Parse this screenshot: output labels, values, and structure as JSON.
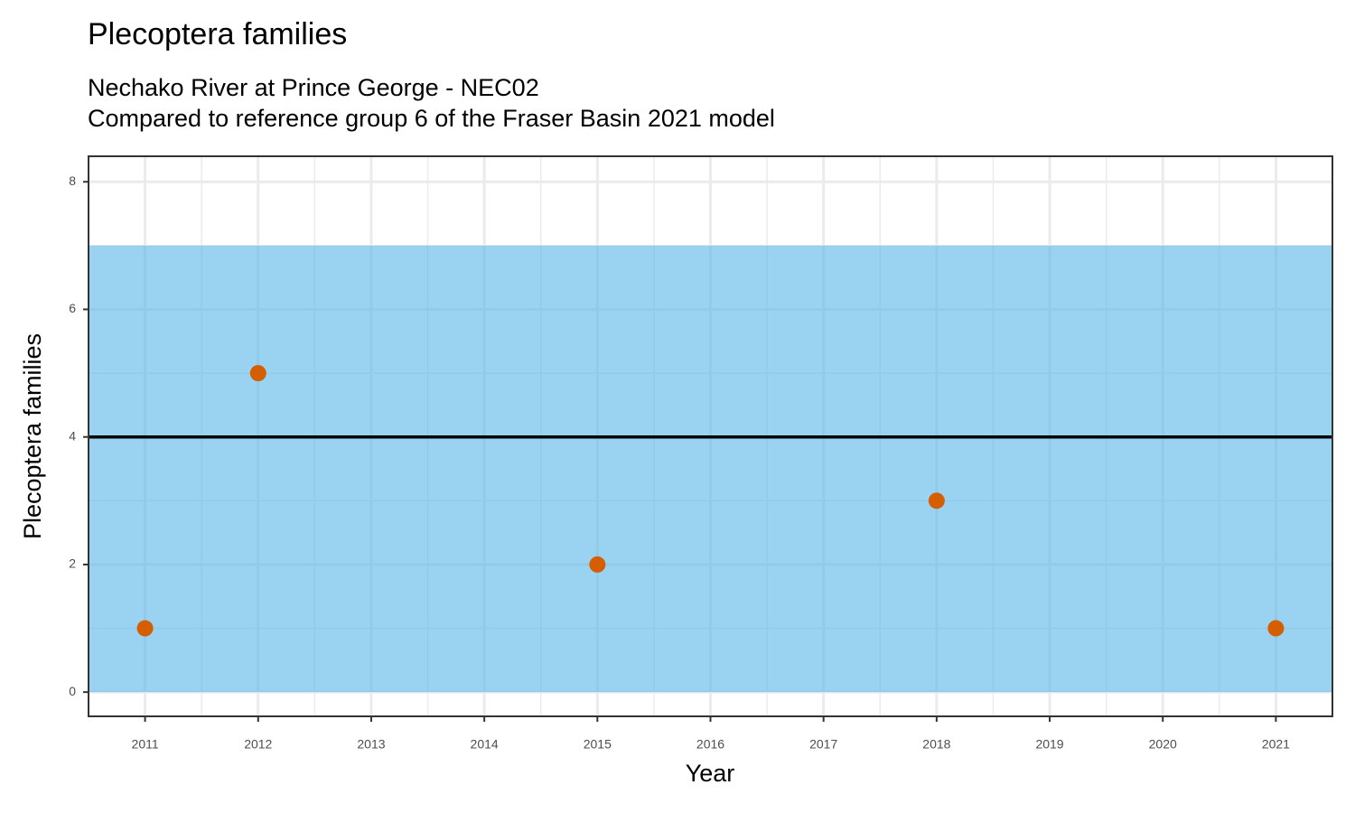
{
  "chart_data": {
    "type": "scatter",
    "title": "Plecoptera families",
    "subtitle": [
      "Nechako River at Prince George - NEC02",
      "Compared to reference group 6 of the Fraser Basin 2021 model"
    ],
    "xlabel": "Year",
    "ylabel": "Plecoptera families",
    "x": [
      2011,
      2012,
      2015,
      2018,
      2021
    ],
    "values": [
      1,
      5,
      2,
      3,
      1
    ],
    "color": "#d55e00",
    "reference_band": {
      "ymin": 0,
      "ymax": 7,
      "color": "#56b4e9"
    },
    "reference_line": 4,
    "xlim": [
      2010.5,
      2021.5
    ],
    "xticks": [
      2011,
      2012,
      2013,
      2014,
      2015,
      2016,
      2017,
      2018,
      2019,
      2020,
      2021
    ],
    "ylim": [
      -0.38,
      8.4
    ],
    "yticks": [
      0,
      2,
      4,
      6,
      8
    ],
    "grid": true
  }
}
